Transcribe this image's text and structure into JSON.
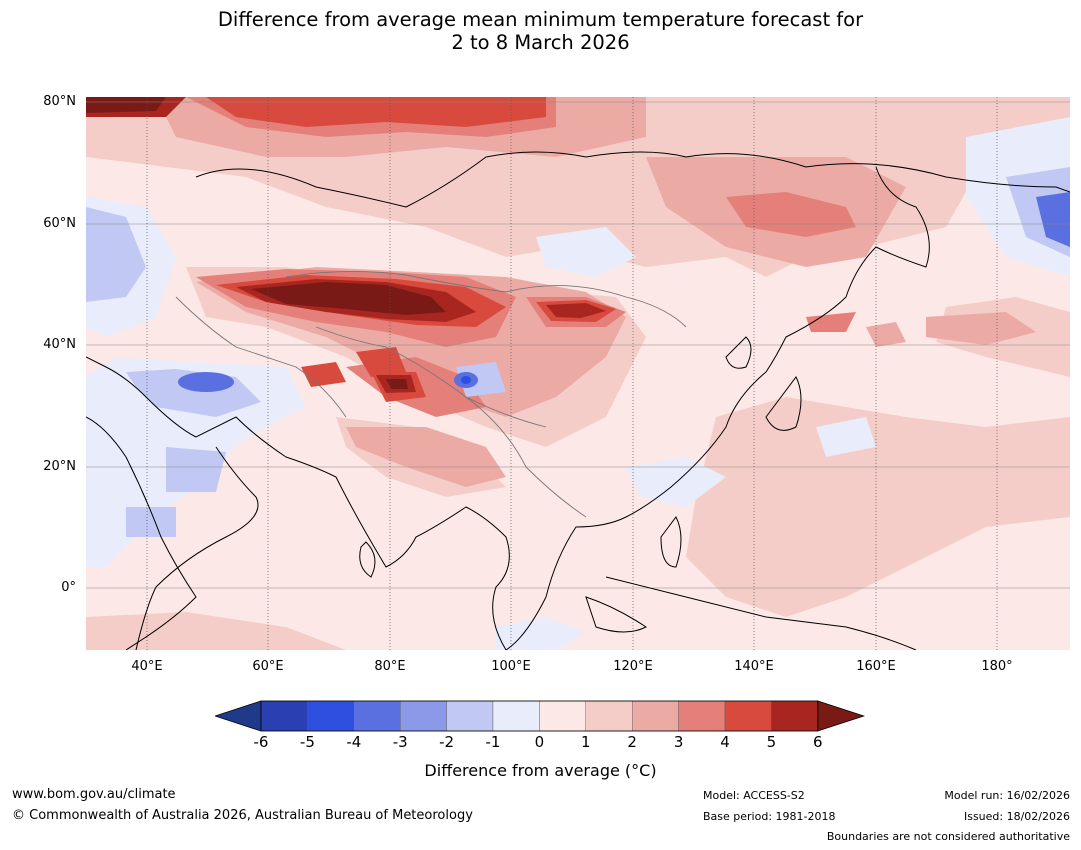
{
  "title": {
    "line1": "Difference from average mean minimum temperature forecast for",
    "line2": "2 to 8 March 2026"
  },
  "map": {
    "region": "Asia",
    "lat_labels": [
      "80°N",
      "60°N",
      "40°N",
      "20°N",
      "0°"
    ],
    "lon_labels": [
      "40°E",
      "60°E",
      "80°E",
      "100°E",
      "120°E",
      "140°E",
      "160°E",
      "180°"
    ],
    "anomaly_regions": [
      {
        "name": "central-asia-warm",
        "anomaly_c": 6
      },
      {
        "name": "mongolia-warm",
        "anomaly_c": 5
      },
      {
        "name": "tibet-cool",
        "anomaly_c": -4
      },
      {
        "name": "arabia-cool",
        "anomaly_c": -2
      },
      {
        "name": "north-pacific-cool",
        "anomaly_c": -3
      }
    ]
  },
  "colorbar": {
    "ticks": [
      "-6",
      "-5",
      "-4",
      "-3",
      "-2",
      "-1",
      "0",
      "1",
      "2",
      "3",
      "4",
      "5",
      "6"
    ],
    "colors": [
      "#1f3a8a",
      "#2a3fb2",
      "#2f4fe0",
      "#5a6fe0",
      "#8a9ae8",
      "#c0c8f3",
      "#e8ecfb",
      "#fce9e7",
      "#f5cdc8",
      "#ecaaa5",
      "#e47f79",
      "#d84a3e",
      "#a8261f",
      "#7a1a16"
    ],
    "label": "Difference from average (°C)"
  },
  "footer": {
    "website": "www.bom.gov.au/climate",
    "copyright": "© Commonwealth of Australia 2026, Australian Bureau of Meteorology",
    "model": "Model: ACCESS-S2",
    "base_period": "Base period: 1981-2018",
    "model_run": "Model run: 16/02/2026",
    "issued": "Issued: 18/02/2026",
    "boundaries_note": "Boundaries are not considered authoritative"
  }
}
